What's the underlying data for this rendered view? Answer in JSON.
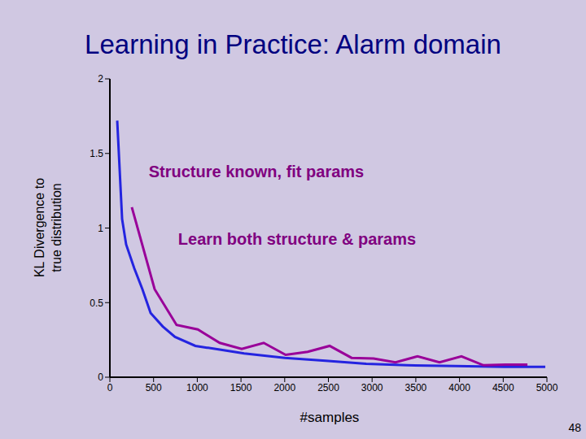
{
  "chart_data": {
    "type": "line",
    "title": "Learning in Practice: Alarm domain",
    "x_label": "#samples",
    "y_label": [
      "KL Divergence to",
      "true distribution"
    ],
    "page_number": 48,
    "xlim": [
      0,
      5000
    ],
    "xticks": [
      0,
      500,
      1000,
      1500,
      2000,
      2500,
      3000,
      3500,
      4000,
      4500,
      5000
    ],
    "ylim": [
      0,
      2
    ],
    "yticks": [
      0,
      0.5,
      1,
      1.5,
      2
    ],
    "grid": false,
    "series": [
      {
        "name": "Structure known, fit params",
        "color": "#2424e0",
        "x": [
          84,
          140,
          186,
          279,
          372,
          466,
          605,
          745,
          978,
          1257,
          1536,
          2002,
          2467,
          2933,
          3400,
          3957,
          4516,
          4981
        ],
        "values": [
          1.72,
          1.06,
          0.89,
          0.73,
          0.59,
          0.43,
          0.34,
          0.27,
          0.21,
          0.185,
          0.16,
          0.13,
          0.11,
          0.09,
          0.08,
          0.075,
          0.07,
          0.07
        ]
      },
      {
        "name": "Learn both structure & params",
        "color": "#990099",
        "x": [
          251,
          512,
          763,
          1006,
          1257,
          1508,
          1760,
          2011,
          2263,
          2514,
          2765,
          3017,
          3268,
          3520,
          3771,
          4022,
          4274,
          4525,
          4777
        ],
        "values": [
          1.14,
          0.59,
          0.35,
          0.32,
          0.23,
          0.19,
          0.23,
          0.15,
          0.17,
          0.21,
          0.13,
          0.125,
          0.1,
          0.14,
          0.1,
          0.14,
          0.08,
          0.085,
          0.085
        ]
      }
    ]
  }
}
